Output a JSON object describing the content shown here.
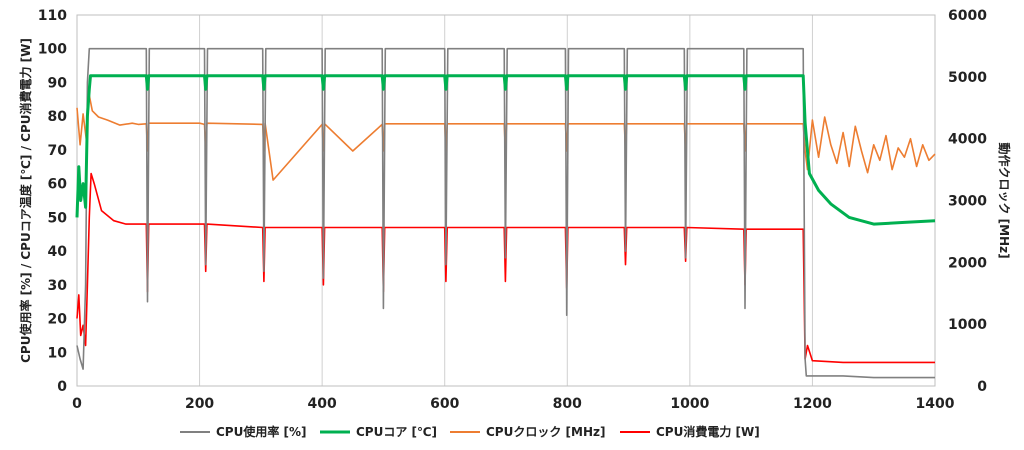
{
  "chart_data": {
    "type": "line",
    "xlim": [
      0,
      1400
    ],
    "x_ticks": [
      0,
      200,
      400,
      600,
      800,
      1000,
      1200,
      1400
    ],
    "ylim_left": [
      0,
      110
    ],
    "y_ticks_left": [
      0,
      10,
      20,
      30,
      40,
      50,
      60,
      70,
      80,
      90,
      100,
      110
    ],
    "ylim_right": [
      0,
      6000
    ],
    "y_ticks_right": [
      0,
      1000,
      2000,
      3000,
      4000,
      5000,
      6000
    ],
    "ylabel_left": "CPU使用率 [%] / CPUコア温度 [℃] / CPU消費電力 [W]",
    "ylabel_right": "動作クロック [MHz]",
    "grid": "vertical",
    "legend_position": "bottom",
    "series": [
      {
        "name": "CPU使用率 [%]",
        "axis": "left",
        "color": "#808080",
        "x": [
          0,
          5,
          10,
          14,
          17,
          20,
          113,
          115,
          118,
          208,
          210,
          213,
          303,
          305,
          308,
          400,
          402,
          405,
          498,
          500,
          503,
          600,
          602,
          605,
          697,
          699,
          702,
          797,
          799,
          802,
          893,
          895,
          898,
          991,
          993,
          996,
          1088,
          1090,
          1093,
          1185,
          1188,
          1190,
          1250,
          1300,
          1350,
          1400
        ],
        "values": [
          12,
          8,
          5,
          30,
          90,
          100,
          100,
          25,
          100,
          100,
          36,
          100,
          100,
          34,
          100,
          100,
          32,
          100,
          100,
          23,
          100,
          100,
          36,
          100,
          100,
          38,
          100,
          100,
          21,
          100,
          100,
          40,
          100,
          100,
          38,
          100,
          100,
          23,
          100,
          100,
          8,
          3,
          3,
          2.5,
          2.5,
          2.5
        ]
      },
      {
        "name": "CPUコア [℃]",
        "axis": "left",
        "color": "#00b050",
        "x": [
          0,
          3,
          6,
          10,
          14,
          17,
          20,
          22,
          113,
          115,
          117,
          208,
          210,
          212,
          303,
          305,
          307,
          400,
          402,
          404,
          498,
          500,
          502,
          600,
          602,
          604,
          697,
          699,
          701,
          797,
          799,
          801,
          893,
          895,
          897,
          991,
          993,
          995,
          1088,
          1090,
          1092,
          1185,
          1188,
          1195,
          1210,
          1230,
          1260,
          1300,
          1350,
          1400
        ],
        "values": [
          50,
          65,
          55,
          60,
          53,
          80,
          88,
          92,
          92,
          88,
          92,
          92,
          88,
          92,
          92,
          88,
          92,
          92,
          88,
          92,
          92,
          88,
          92,
          92,
          88,
          92,
          92,
          88,
          92,
          92,
          88,
          92,
          92,
          88,
          92,
          92,
          88,
          92,
          92,
          88,
          92,
          92,
          78,
          63,
          58,
          54,
          50,
          48,
          48.5,
          49
        ]
      },
      {
        "name": "CPUクロック [MHz]",
        "axis": "right",
        "color": "#ed7d31",
        "x": [
          0,
          5,
          10,
          15,
          20,
          25,
          35,
          50,
          70,
          90,
          100,
          113,
          115,
          117,
          200,
          208,
          210,
          212,
          303,
          305,
          307,
          320,
          400,
          402,
          404,
          450,
          498,
          500,
          502,
          600,
          602,
          604,
          697,
          699,
          701,
          797,
          799,
          801,
          893,
          895,
          897,
          991,
          993,
          995,
          1088,
          1090,
          1092,
          1185,
          1188,
          1192,
          1200,
          1210,
          1220,
          1230,
          1240,
          1250,
          1260,
          1270,
          1280,
          1290,
          1300,
          1310,
          1320,
          1330,
          1340,
          1350,
          1360,
          1370,
          1380,
          1390,
          1400
        ],
        "values": [
          4500,
          3900,
          4400,
          4000,
          4700,
          4450,
          4350,
          4300,
          4220,
          4250,
          4230,
          4240,
          3800,
          4250,
          4250,
          4230,
          3800,
          4250,
          4230,
          3800,
          4250,
          3330,
          4230,
          3800,
          4240,
          3800,
          4230,
          3800,
          4240,
          4240,
          3800,
          4240,
          4240,
          3800,
          4240,
          4240,
          3800,
          4240,
          4240,
          3800,
          4240,
          4240,
          3800,
          4240,
          4240,
          3800,
          4240,
          4240,
          3800,
          3500,
          4300,
          3700,
          4350,
          3900,
          3600,
          4100,
          3550,
          4200,
          3800,
          3450,
          3900,
          3650,
          4050,
          3500,
          3850,
          3700,
          4000,
          3550,
          3900,
          3650,
          3750
        ]
      },
      {
        "name": "CPU消費電力 [W]",
        "axis": "left",
        "color": "#ff0000",
        "x": [
          0,
          3,
          6,
          10,
          14,
          17,
          20,
          23,
          28,
          40,
          60,
          80,
          100,
          113,
          115,
          117,
          208,
          210,
          212,
          303,
          305,
          307,
          400,
          402,
          404,
          498,
          500,
          502,
          600,
          602,
          604,
          697,
          699,
          701,
          797,
          799,
          801,
          893,
          895,
          897,
          991,
          993,
          995,
          1088,
          1090,
          1092,
          1185,
          1188,
          1192,
          1200,
          1250,
          1300,
          1350,
          1400
        ],
        "values": [
          20,
          27,
          15,
          18,
          12,
          30,
          50,
          63,
          60,
          52,
          49,
          48,
          48,
          48,
          28,
          48,
          48,
          34,
          48,
          47,
          31,
          47,
          47,
          30,
          47,
          47,
          28,
          47,
          47,
          31,
          47,
          47,
          31,
          47,
          47,
          29,
          47,
          47,
          36,
          47,
          47,
          37,
          47,
          46.5,
          30,
          46.5,
          46.5,
          8,
          12,
          7.5,
          7,
          7,
          7,
          7
        ]
      }
    ]
  }
}
